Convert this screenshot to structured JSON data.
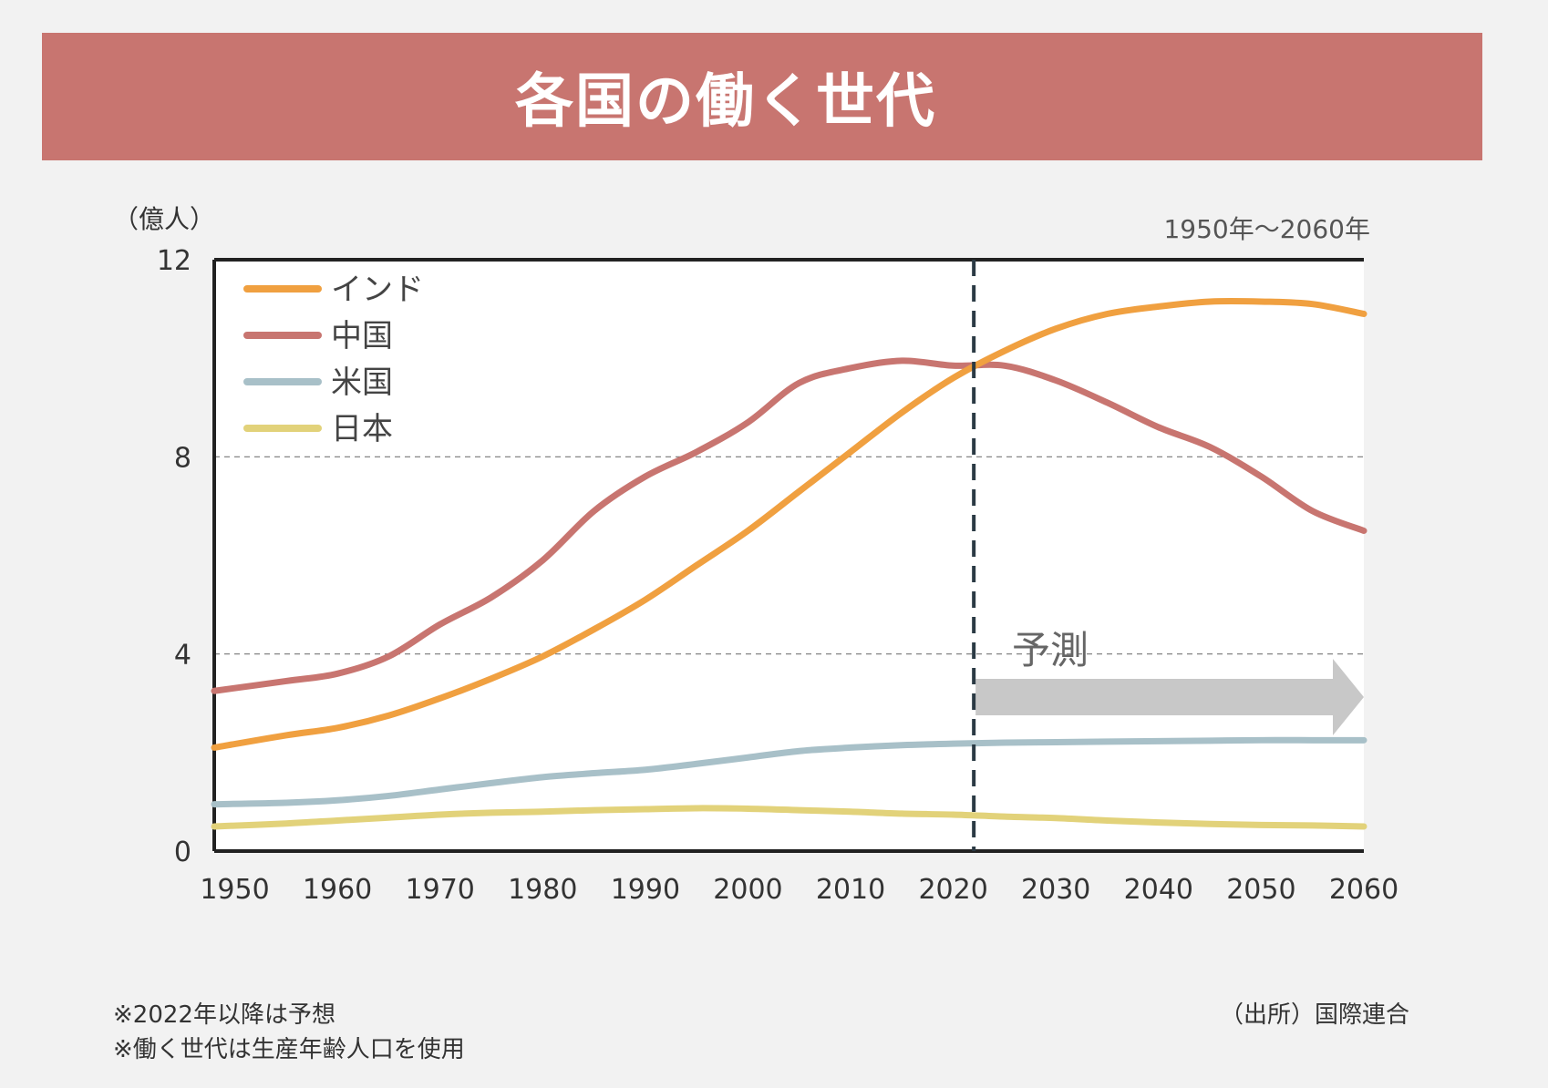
{
  "title": "各国の働く世代",
  "notes": [
    "※2022年以降は予想",
    "※働く世代は生産年齢人口を使用"
  ],
  "source": "（出所）国際連合",
  "chart_data": {
    "type": "line",
    "unit_label": "（億人）",
    "period_label": "1950年〜2060年",
    "forecast_label": "予測",
    "forecast_start_x": 2022,
    "xlim": [
      1948,
      2060
    ],
    "ylim": [
      0,
      12
    ],
    "x_ticks": [
      1950,
      1960,
      1970,
      1980,
      1990,
      2000,
      2010,
      2020,
      2030,
      2040,
      2050,
      2060
    ],
    "y_ticks": [
      0,
      4,
      8,
      12
    ],
    "legend_position": "top-left",
    "grid": "dashed at 4 and 8",
    "x": [
      1948,
      1955,
      1960,
      1965,
      1970,
      1975,
      1980,
      1985,
      1990,
      1995,
      2000,
      2005,
      2010,
      2015,
      2020,
      2025,
      2030,
      2035,
      2040,
      2045,
      2050,
      2055,
      2060
    ],
    "series": [
      {
        "name": "インド",
        "color": "#f0a040",
        "values": [
          2.1,
          2.35,
          2.5,
          2.75,
          3.1,
          3.5,
          3.95,
          4.5,
          5.1,
          5.8,
          6.5,
          7.3,
          8.1,
          8.9,
          9.6,
          10.15,
          10.6,
          10.9,
          11.05,
          11.15,
          11.15,
          11.1,
          10.9
        ]
      },
      {
        "name": "中国",
        "color": "#c87570",
        "values": [
          3.25,
          3.45,
          3.6,
          3.95,
          4.6,
          5.15,
          5.9,
          6.9,
          7.6,
          8.1,
          8.7,
          9.5,
          9.8,
          9.95,
          9.85,
          9.85,
          9.55,
          9.1,
          8.6,
          8.2,
          7.6,
          6.9,
          6.5
        ]
      },
      {
        "name": "米国",
        "color": "#a8c0c8",
        "values": [
          0.95,
          0.98,
          1.03,
          1.12,
          1.25,
          1.38,
          1.5,
          1.58,
          1.65,
          1.77,
          1.9,
          2.03,
          2.1,
          2.15,
          2.18,
          2.2,
          2.21,
          2.22,
          2.23,
          2.24,
          2.25,
          2.25,
          2.25
        ]
      },
      {
        "name": "日本",
        "color": "#e2d27a",
        "values": [
          0.5,
          0.56,
          0.62,
          0.68,
          0.74,
          0.78,
          0.8,
          0.83,
          0.85,
          0.87,
          0.86,
          0.83,
          0.8,
          0.76,
          0.74,
          0.7,
          0.67,
          0.62,
          0.58,
          0.55,
          0.53,
          0.52,
          0.5
        ]
      }
    ]
  }
}
